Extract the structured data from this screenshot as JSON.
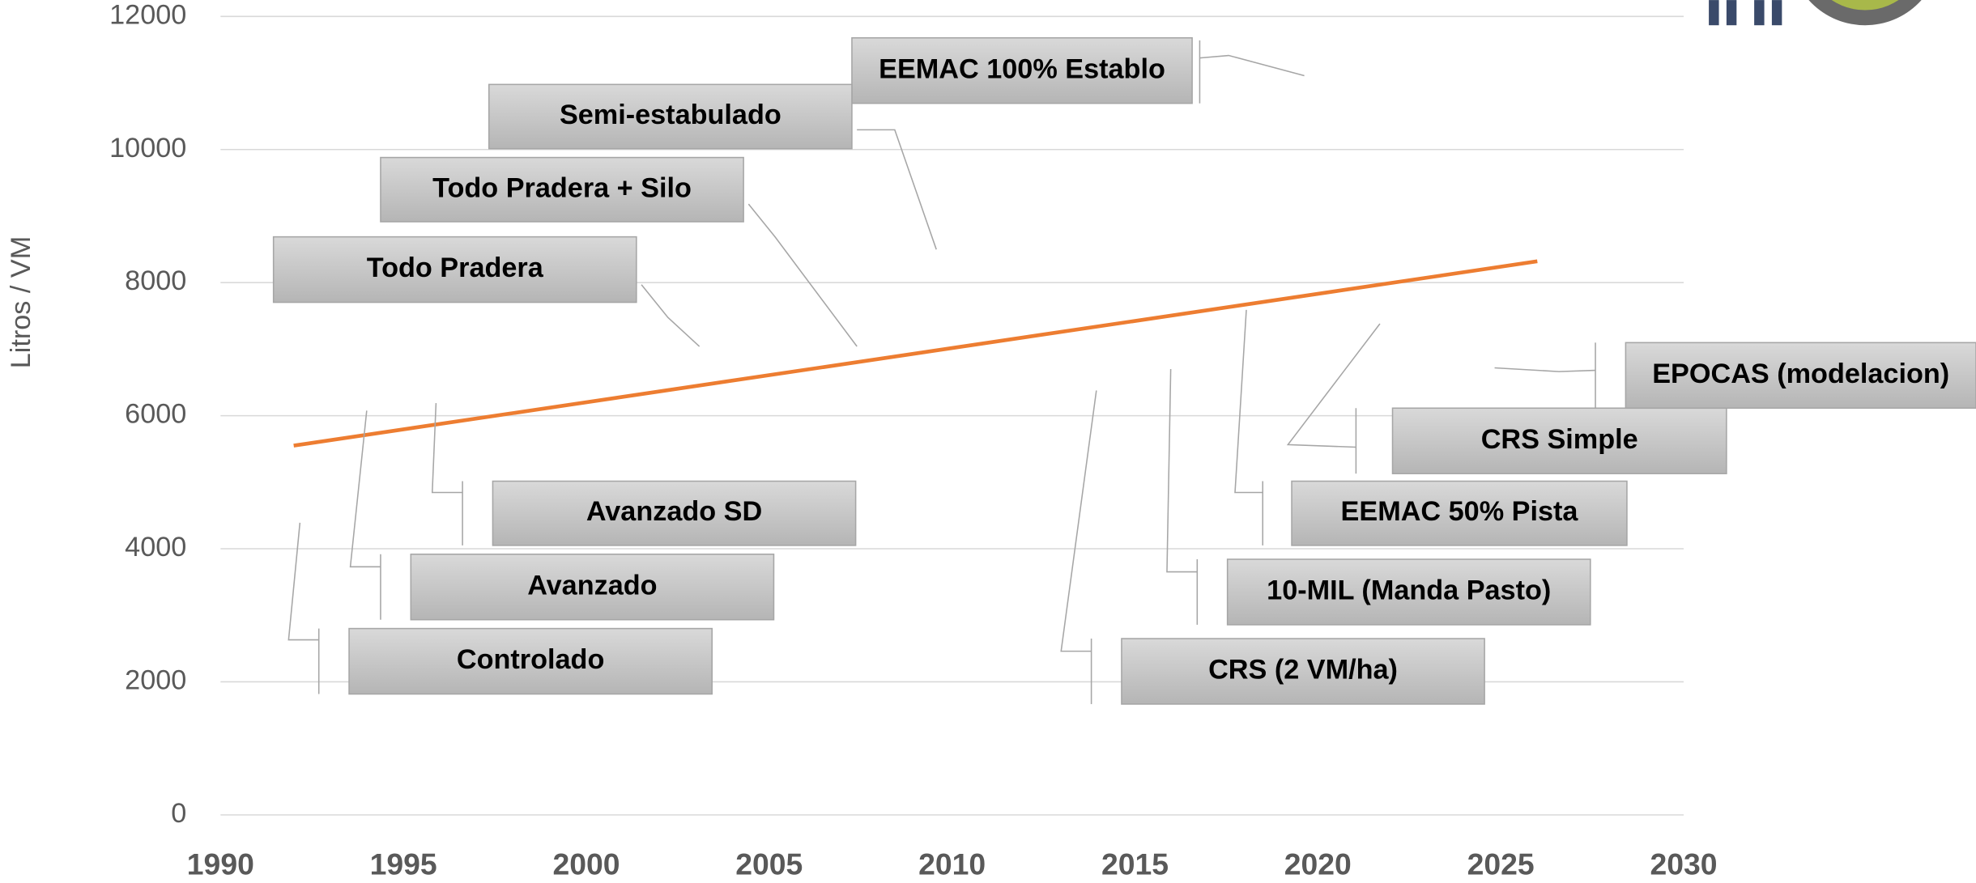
{
  "chart_data": {
    "type": "line",
    "y_label": "Litros / VM",
    "x": [
      1992,
      2026
    ],
    "series": [
      {
        "color": "#ed7d31",
        "values": [
          5550,
          8320
        ]
      }
    ],
    "xlim": [
      1990,
      2030
    ],
    "xticks": [
      1990,
      1995,
      2000,
      2005,
      2010,
      2015,
      2020,
      2025,
      2030
    ],
    "ylim": [
      0,
      12000
    ],
    "yticks": [
      0,
      2000,
      4000,
      6000,
      8000,
      10000,
      12000
    ],
    "grid": true,
    "annotations": [
      "EEMAC 100% Establo",
      "Semi-estabulado",
      "Todo Pradera + Silo",
      "Todo Pradera",
      "Avanzado SD",
      "Avanzado",
      "Controlado",
      "CRS (2 VM/ha)",
      "10-MIL (Manda Pasto)",
      "EEMAC 50% Pista",
      "CRS Simple",
      "EPOCAS (modelacion)"
    ]
  }
}
